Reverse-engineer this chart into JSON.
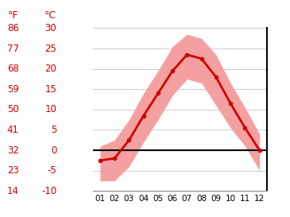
{
  "months": [
    1,
    2,
    3,
    4,
    5,
    6,
    7,
    8,
    9,
    10,
    11,
    12
  ],
  "mean_temp_c": [
    -2.5,
    -2.0,
    2.5,
    8.5,
    14.0,
    19.5,
    23.5,
    22.5,
    18.0,
    11.5,
    5.5,
    0.0
  ],
  "band_high_c": [
    1.0,
    2.5,
    7.5,
    14.0,
    19.5,
    25.5,
    28.5,
    27.5,
    23.5,
    16.5,
    10.5,
    4.0
  ],
  "band_low_c": [
    -7.5,
    -7.5,
    -4.0,
    2.0,
    7.5,
    13.5,
    17.5,
    16.5,
    11.0,
    5.5,
    1.0,
    -5.0
  ],
  "ylim": [
    -10,
    30
  ],
  "yticks_c": [
    -10,
    -5,
    0,
    5,
    10,
    15,
    20,
    25,
    30
  ],
  "yticks_f": [
    14,
    23,
    32,
    41,
    50,
    59,
    68,
    77,
    86
  ],
  "line_color": "#cc0000",
  "band_color": "#f5a0a0",
  "zero_line_color": "#000000",
  "grid_color": "#cccccc",
  "tick_color": "#cc0000",
  "xticklabel_color": "#000000",
  "bg_color": "#ffffff",
  "xlabel_fontsize": 7.5,
  "ylabel_fontsize": 8.5,
  "header_fontsize": 9
}
